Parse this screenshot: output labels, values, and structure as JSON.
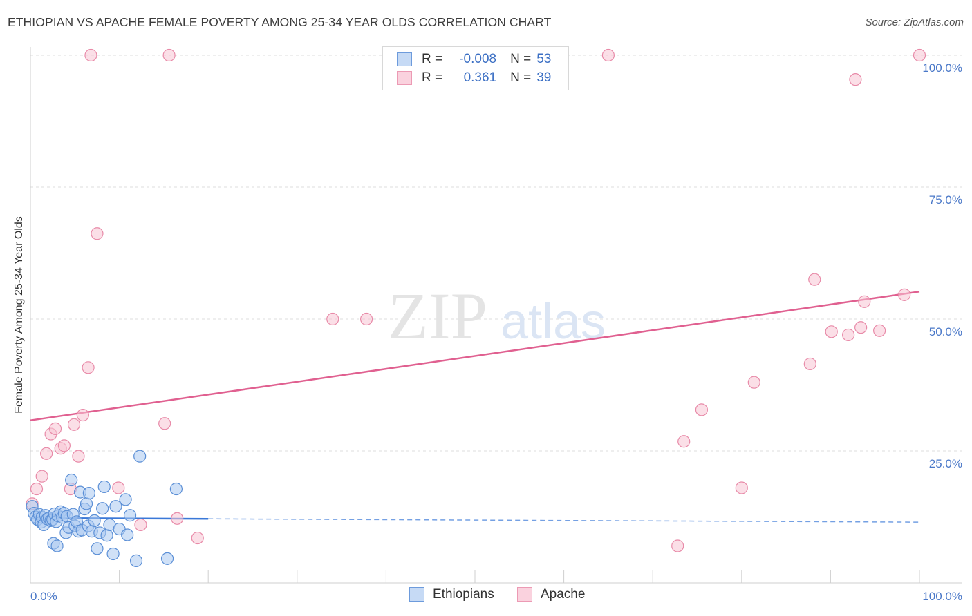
{
  "title": "ETHIOPIAN VS APACHE FEMALE POVERTY AMONG 25-34 YEAR OLDS CORRELATION CHART",
  "source": "Source: ZipAtlas.com",
  "watermark": {
    "zip": "ZIP",
    "atlas": "atlas"
  },
  "legend": {
    "rows": [
      {
        "r_label": "R =",
        "r_value": "-0.008",
        "n_label": "N =",
        "n_value": "53"
      },
      {
        "r_label": "R =",
        "r_value": "0.361",
        "n_label": "N =",
        "n_value": "39"
      }
    ]
  },
  "bottom_legend": [
    "Ethiopians",
    "Apache"
  ],
  "colors": {
    "ethiopians_fill": "#a9c8f0",
    "ethiopians_stroke": "#5b8fd6",
    "ethiopians_line": "#3a78d8",
    "apache_fill": "#f8c4d4",
    "apache_stroke": "#e88aa8",
    "apache_line": "#e06090",
    "tick_text": "#4a78c8"
  },
  "chart_data": {
    "type": "scatter",
    "title": "ETHIOPIAN VS APACHE FEMALE POVERTY AMONG 25-34 YEAR OLDS CORRELATION CHART",
    "xlabel": "",
    "ylabel": "Female Poverty Among 25-34 Year Olds",
    "xlim": [
      0,
      100
    ],
    "ylim": [
      0,
      100
    ],
    "x_tick_labels": [
      "0.0%",
      "100.0%"
    ],
    "y_tick_labels": [
      "25.0%",
      "50.0%",
      "75.0%",
      "100.0%"
    ],
    "y_ticks": [
      25,
      50,
      75,
      100
    ],
    "grid": true,
    "legend_position": "top-center",
    "series": [
      {
        "name": "Ethiopians",
        "r": -0.008,
        "n": 53,
        "trend": {
          "x0": 0,
          "y0": 12.3,
          "x1": 100,
          "y1": 11.5,
          "solid_until_x": 20
        },
        "points": [
          [
            0.2,
            14.5
          ],
          [
            0.4,
            13.2
          ],
          [
            0.6,
            12.5
          ],
          [
            0.8,
            12.0
          ],
          [
            1.0,
            13.0
          ],
          [
            1.2,
            11.5
          ],
          [
            1.3,
            12.4
          ],
          [
            1.5,
            11.0
          ],
          [
            1.7,
            12.8
          ],
          [
            1.9,
            12.1
          ],
          [
            2.1,
            12.3
          ],
          [
            2.3,
            11.8
          ],
          [
            2.5,
            12.0
          ],
          [
            2.7,
            13.1
          ],
          [
            2.9,
            11.6
          ],
          [
            3.1,
            12.7
          ],
          [
            2.6,
            7.5
          ],
          [
            3.0,
            7.0
          ],
          [
            3.4,
            13.5
          ],
          [
            3.6,
            12.4
          ],
          [
            3.8,
            13.2
          ],
          [
            4.0,
            9.5
          ],
          [
            4.1,
            12.6
          ],
          [
            4.3,
            10.5
          ],
          [
            4.6,
            19.5
          ],
          [
            4.8,
            13.0
          ],
          [
            5.0,
            10.8
          ],
          [
            5.2,
            11.6
          ],
          [
            5.4,
            9.8
          ],
          [
            5.6,
            17.2
          ],
          [
            5.8,
            10.0
          ],
          [
            6.1,
            14.0
          ],
          [
            6.3,
            15.0
          ],
          [
            6.5,
            10.8
          ],
          [
            6.6,
            17.0
          ],
          [
            6.9,
            9.8
          ],
          [
            7.2,
            11.8
          ],
          [
            7.5,
            6.5
          ],
          [
            7.8,
            9.5
          ],
          [
            8.1,
            14.1
          ],
          [
            8.3,
            18.2
          ],
          [
            8.6,
            9.0
          ],
          [
            8.9,
            11.0
          ],
          [
            9.3,
            5.5
          ],
          [
            9.6,
            14.5
          ],
          [
            10.0,
            10.2
          ],
          [
            10.7,
            15.8
          ],
          [
            10.9,
            9.1
          ],
          [
            11.2,
            12.8
          ],
          [
            11.9,
            4.2
          ],
          [
            12.3,
            24.0
          ],
          [
            15.4,
            4.6
          ],
          [
            16.4,
            17.8
          ]
        ]
      },
      {
        "name": "Apache",
        "r": 0.361,
        "n": 39,
        "trend": {
          "x0": 0,
          "y0": 30.8,
          "x1": 100,
          "y1": 55.2
        },
        "points": [
          [
            0.2,
            15.0
          ],
          [
            0.7,
            17.8
          ],
          [
            1.3,
            20.2
          ],
          [
            1.8,
            24.5
          ],
          [
            2.3,
            28.2
          ],
          [
            2.8,
            29.2
          ],
          [
            3.4,
            25.5
          ],
          [
            3.8,
            26.0
          ],
          [
            4.5,
            17.8
          ],
          [
            4.9,
            30.0
          ],
          [
            5.4,
            24.0
          ],
          [
            5.9,
            31.8
          ],
          [
            6.5,
            40.8
          ],
          [
            6.8,
            100.0
          ],
          [
            7.5,
            66.2
          ],
          [
            9.9,
            18.0
          ],
          [
            12.4,
            11.0
          ],
          [
            15.1,
            30.2
          ],
          [
            15.6,
            100.0
          ],
          [
            16.5,
            12.2
          ],
          [
            18.8,
            8.5
          ],
          [
            34.0,
            50.0
          ],
          [
            37.8,
            50.0
          ],
          [
            65.0,
            100.0
          ],
          [
            72.8,
            7.0
          ],
          [
            73.5,
            26.8
          ],
          [
            75.5,
            32.8
          ],
          [
            80.0,
            18.0
          ],
          [
            81.4,
            38.0
          ],
          [
            87.7,
            41.5
          ],
          [
            88.2,
            57.5
          ],
          [
            90.1,
            47.6
          ],
          [
            92.0,
            47.0
          ],
          [
            92.8,
            95.4
          ],
          [
            93.4,
            48.4
          ],
          [
            93.8,
            53.3
          ],
          [
            95.5,
            47.8
          ],
          [
            98.3,
            54.6
          ],
          [
            100.0,
            100.0
          ]
        ]
      }
    ]
  }
}
